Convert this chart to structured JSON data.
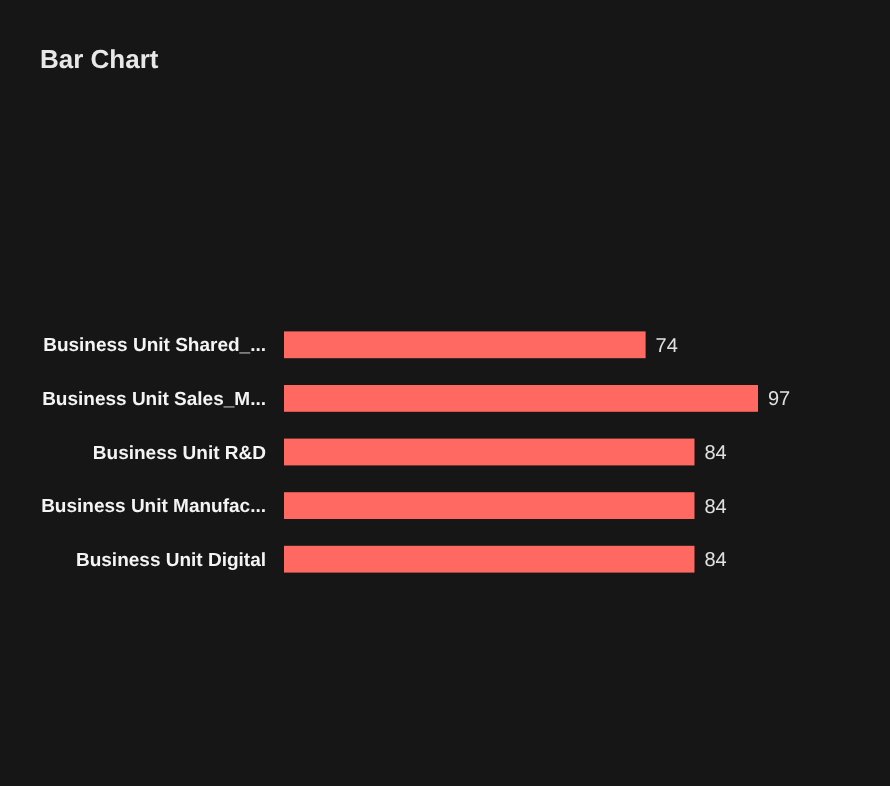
{
  "chart_data": {
    "type": "bar",
    "title": "Bar Chart",
    "orientation": "horizontal",
    "categories": [
      "Business Unit Shared_...",
      "Business Unit Sales_M...",
      "Business Unit R&D",
      "Business Unit Manufac...",
      "Business Unit Digital"
    ],
    "values": [
      74,
      97,
      84,
      84,
      84
    ],
    "color": "#ff6961",
    "data_labels": true
  }
}
